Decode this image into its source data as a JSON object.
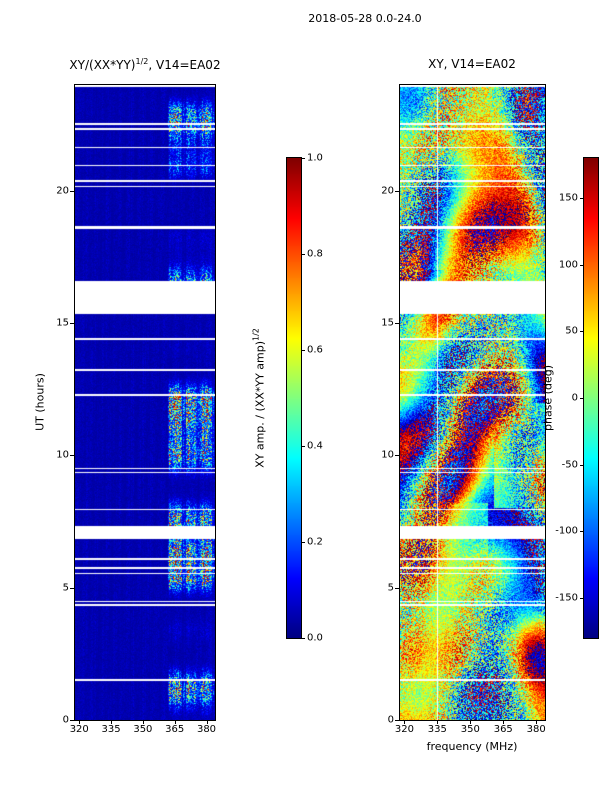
{
  "figure_title": "2018-05-28 0.0-24.0",
  "left_panel": {
    "title_prefix": "XY/(XX*YY)",
    "title_sup": "1/2",
    "title_suffix": ", V14=EA02"
  },
  "right_panel": {
    "title": "XY, V14=EA02"
  },
  "axes": {
    "y_label": "UT (hours)",
    "x_label": "frequency (MHz)",
    "x_tick_values": [
      320,
      335,
      350,
      365,
      380
    ],
    "x_tick_labels": [
      "320",
      "335",
      "350",
      "365",
      "380"
    ],
    "y_tick_values": [
      0,
      5,
      10,
      15,
      20
    ],
    "y_tick_labels": [
      "0",
      "5",
      "10",
      "15",
      "20"
    ]
  },
  "left_colorbar": {
    "label_prefix": "XY amp. / (XX*YY amp)",
    "label_sup": "1/2",
    "range": [
      0.0,
      1.0
    ],
    "tick_values": [
      0.0,
      0.2,
      0.4,
      0.6,
      0.8,
      1.0
    ],
    "tick_labels": [
      "0.0",
      "0.2",
      "0.4",
      "0.6",
      "0.8",
      "1.0"
    ]
  },
  "right_colorbar": {
    "label": "phase (deg)",
    "range": [
      -180,
      180
    ],
    "tick_values": [
      150,
      100,
      50,
      0,
      -50,
      -100,
      -150
    ],
    "tick_labels": [
      "150",
      "100",
      "50",
      "0",
      "-50",
      "-100",
      "-150"
    ]
  },
  "chart_data": [
    {
      "type": "heatmap",
      "panel": "left",
      "title": "XY/(XX*YY)^(1/2), V14=EA02",
      "xlabel": "frequency (MHz)",
      "ylabel": "UT (hours)",
      "x_range_mhz": [
        318,
        384
      ],
      "y_range_hours": [
        0,
        24
      ],
      "x_ticks": [
        320,
        335,
        350,
        365,
        380
      ],
      "y_ticks": [
        0,
        5,
        10,
        15,
        20
      ],
      "colormap": "jet",
      "colorbar_label": "XY amp. / (XX*YY amp)^(1/2)",
      "colorbar_ticks": [
        0.0,
        0.2,
        0.4,
        0.6,
        0.8,
        1.0
      ],
      "value_range": [
        0.0,
        1.0
      ],
      "background_level": 0.05,
      "active_band_mhz": [
        362,
        383.5
      ],
      "active_subbands_mhz": [
        [
          362.5,
          368.5
        ],
        [
          370.5,
          375.0
        ],
        [
          377.0,
          382.5
        ]
      ],
      "peak_value": 0.9,
      "missing_time_gaps_hours": [
        [
          15.35,
          16.6
        ],
        [
          6.85,
          7.25
        ]
      ],
      "flagged_rows_note": "numerous thin horizontal white gaps (flagged integrations) across full band"
    },
    {
      "type": "heatmap",
      "panel": "right",
      "title": "XY, V14=EA02",
      "xlabel": "frequency (MHz)",
      "ylabel": "UT (hours)",
      "x_range_mhz": [
        318,
        384
      ],
      "y_range_hours": [
        0,
        24
      ],
      "colormap": "jet",
      "colorbar_label": "phase (deg)",
      "colorbar_ticks": [
        150,
        100,
        50,
        0,
        -50,
        -100,
        -150
      ],
      "value_range": [
        -180,
        180
      ],
      "character": "noise-like cross-hand phase; coherent yellow-green patches near 328-358 MHz below ~8 UT, orange-red patches above ~17 UT and in the 362-383 MHz band, random speckle elsewhere",
      "missing_time_gaps_hours": [
        [
          15.35,
          16.6
        ],
        [
          6.85,
          7.25
        ]
      ],
      "white_column_mhz": 335
    }
  ]
}
